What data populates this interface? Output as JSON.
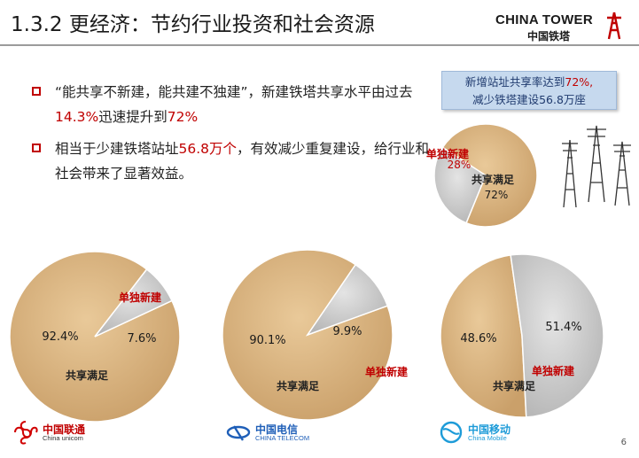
{
  "header": {
    "title": "1.3.2 更经济：节约行业投资和社会资源",
    "brand_en": "CHINA TOWER",
    "brand_cn": "中国铁塔"
  },
  "bullets": [
    {
      "pre": "“能共享不新建，能共建不独建”，新建铁塔共享水平由过去",
      "hl1": "14.3%",
      "mid": "迅速提升到",
      "hl2": "72%",
      "post": ""
    },
    {
      "pre": "相当于少建铁塔站址",
      "hl1": "56.8万个",
      "mid": "，有效减少重复建设，给行业和社会带来了显著效益。",
      "hl2": "",
      "post": ""
    }
  ],
  "callout": {
    "line1_pre": "新增站址共享率达到",
    "line1_hl": "72%,",
    "line2": "减少铁塔建设56.8万座"
  },
  "colors": {
    "shared": "#d8b07c",
    "separate": "#c8c8c8",
    "label_red": "#c00000",
    "label_dark": "#222222"
  },
  "chart_data": [
    {
      "type": "pie",
      "title": "",
      "slices": [
        {
          "label": "共享满足",
          "value": 72
        },
        {
          "label": "单独新建",
          "value": 28
        }
      ],
      "value_labels": [
        "72%",
        "28%"
      ]
    },
    {
      "type": "pie",
      "title": "",
      "slices": [
        {
          "label": "共享满足",
          "value": 92.4
        },
        {
          "label": "单独新建",
          "value": 7.6
        }
      ],
      "value_labels": [
        "92.4%",
        "7.6%"
      ]
    },
    {
      "type": "pie",
      "title": "",
      "slices": [
        {
          "label": "共享满足",
          "value": 90.1
        },
        {
          "label": "单独新建",
          "value": 9.9
        }
      ],
      "value_labels": [
        "90.1%",
        "9.9%"
      ]
    },
    {
      "type": "pie",
      "title": "",
      "slices": [
        {
          "label": "共享满足",
          "value": 48.6
        },
        {
          "label": "单独新建",
          "value": 51.4
        }
      ],
      "value_labels": [
        "48.6%",
        "51.4%"
      ]
    }
  ],
  "logos": {
    "unicom_cn": "中国联通",
    "unicom_en": "China unicom",
    "telecom_cn": "中国电信",
    "telecom_en": "CHINA TELECOM",
    "mobile_cn": "中国移动",
    "mobile_en": "China Mobile"
  },
  "page_number": "6"
}
